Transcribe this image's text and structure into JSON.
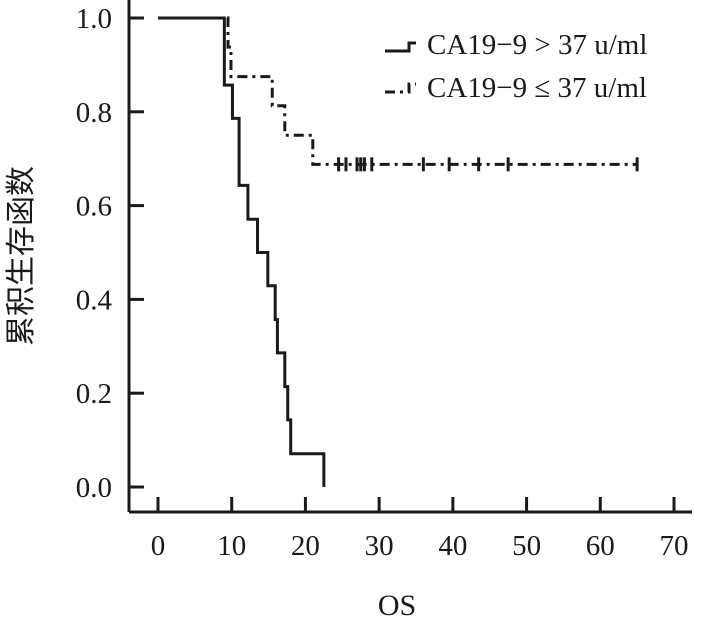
{
  "chart_data": {
    "type": "line",
    "title": "",
    "xlabel": "OS",
    "ylabel": "累积生存函数",
    "xlim": [
      0,
      70
    ],
    "ylim": [
      0,
      1
    ],
    "x_ticks": [
      "0",
      "10",
      "20",
      "30",
      "40",
      "50",
      "60",
      "70"
    ],
    "y_ticks": [
      "0.0",
      "0.2",
      "0.4",
      "0.6",
      "0.8",
      "1.0"
    ],
    "x_tick_values": [
      0,
      10,
      20,
      30,
      40,
      50,
      60,
      70
    ],
    "y_tick_values": [
      0,
      0.2,
      0.4,
      0.6,
      0.8,
      1.0
    ],
    "grid": false,
    "legend_position": "top-right",
    "series": [
      {
        "name": "CA19−9 > 37 u/ml",
        "style": "solid",
        "color": "#1a1a1a",
        "steps": [
          [
            0,
            1.0
          ],
          [
            9.0,
            0.857
          ],
          [
            10.1,
            0.786
          ],
          [
            11.0,
            0.643
          ],
          [
            12.2,
            0.571
          ],
          [
            13.5,
            0.5
          ],
          [
            14.9,
            0.429
          ],
          [
            15.9,
            0.357
          ],
          [
            16.2,
            0.286
          ],
          [
            17.2,
            0.214
          ],
          [
            17.6,
            0.143
          ],
          [
            18.0,
            0.071
          ],
          [
            22.5,
            0.0
          ]
        ],
        "censored": []
      },
      {
        "name": "CA19−9 ≤ 37 u/ml",
        "style": "dashdot",
        "color": "#1a1a1a",
        "steps": [
          [
            0,
            1.0
          ],
          [
            9.5,
            0.938
          ],
          [
            9.9,
            0.875
          ],
          [
            15.5,
            0.813
          ],
          [
            17.2,
            0.75
          ],
          [
            21.0,
            0.688
          ]
        ],
        "end_x": 65,
        "censored": [
          24.5,
          25.5,
          27.0,
          27.5,
          28.0,
          29.0,
          36.0,
          39.5,
          43.5,
          47.5,
          65.0
        ]
      }
    ]
  }
}
